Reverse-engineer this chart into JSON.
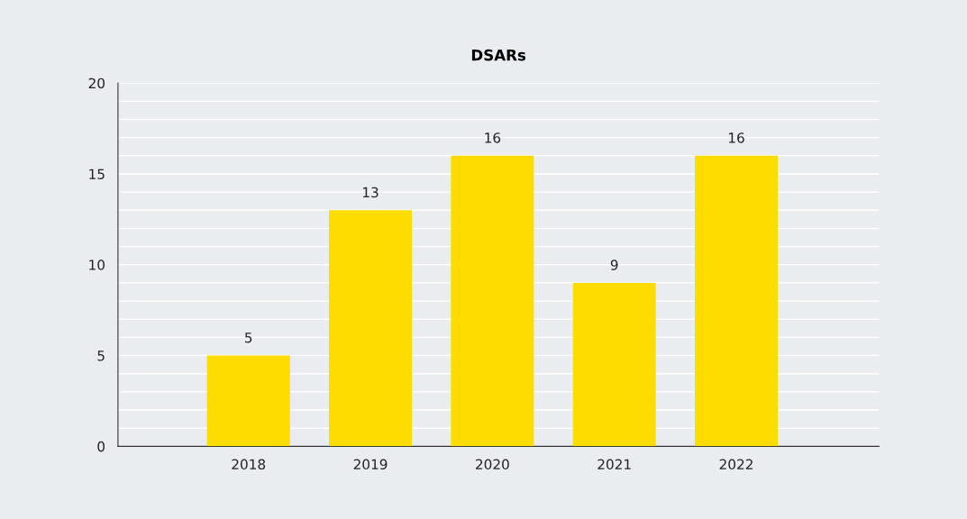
{
  "chart_data": {
    "type": "bar",
    "title": "DSARs",
    "categories": [
      "2018",
      "2019",
      "2020",
      "2021",
      "2022"
    ],
    "values": [
      5,
      13,
      16,
      9,
      16
    ],
    "color": "#ffdc00",
    "ylim": [
      0,
      20
    ],
    "yticks": [
      0,
      {
        "value": 1,
        "label": null
      },
      {
        "value": 2,
        "label": null
      },
      {
        "value": 3,
        "label": null
      },
      {
        "value": 4,
        "label": null
      },
      5,
      {
        "value": 6,
        "label": null
      },
      {
        "value": 7,
        "label": null
      },
      {
        "value": 8,
        "label": null
      },
      {
        "value": 9,
        "label": null
      },
      10,
      {
        "value": 11,
        "label": null
      },
      {
        "value": 12,
        "label": null
      },
      {
        "value": 13,
        "label": null
      },
      {
        "value": 14,
        "label": null
      },
      15,
      {
        "value": 16,
        "label": null
      },
      {
        "value": 17,
        "label": null
      },
      {
        "value": 18,
        "label": null
      },
      {
        "value": 19,
        "label": null
      },
      20
    ],
    "grid": "y",
    "data_labels": true,
    "legend": false
  }
}
